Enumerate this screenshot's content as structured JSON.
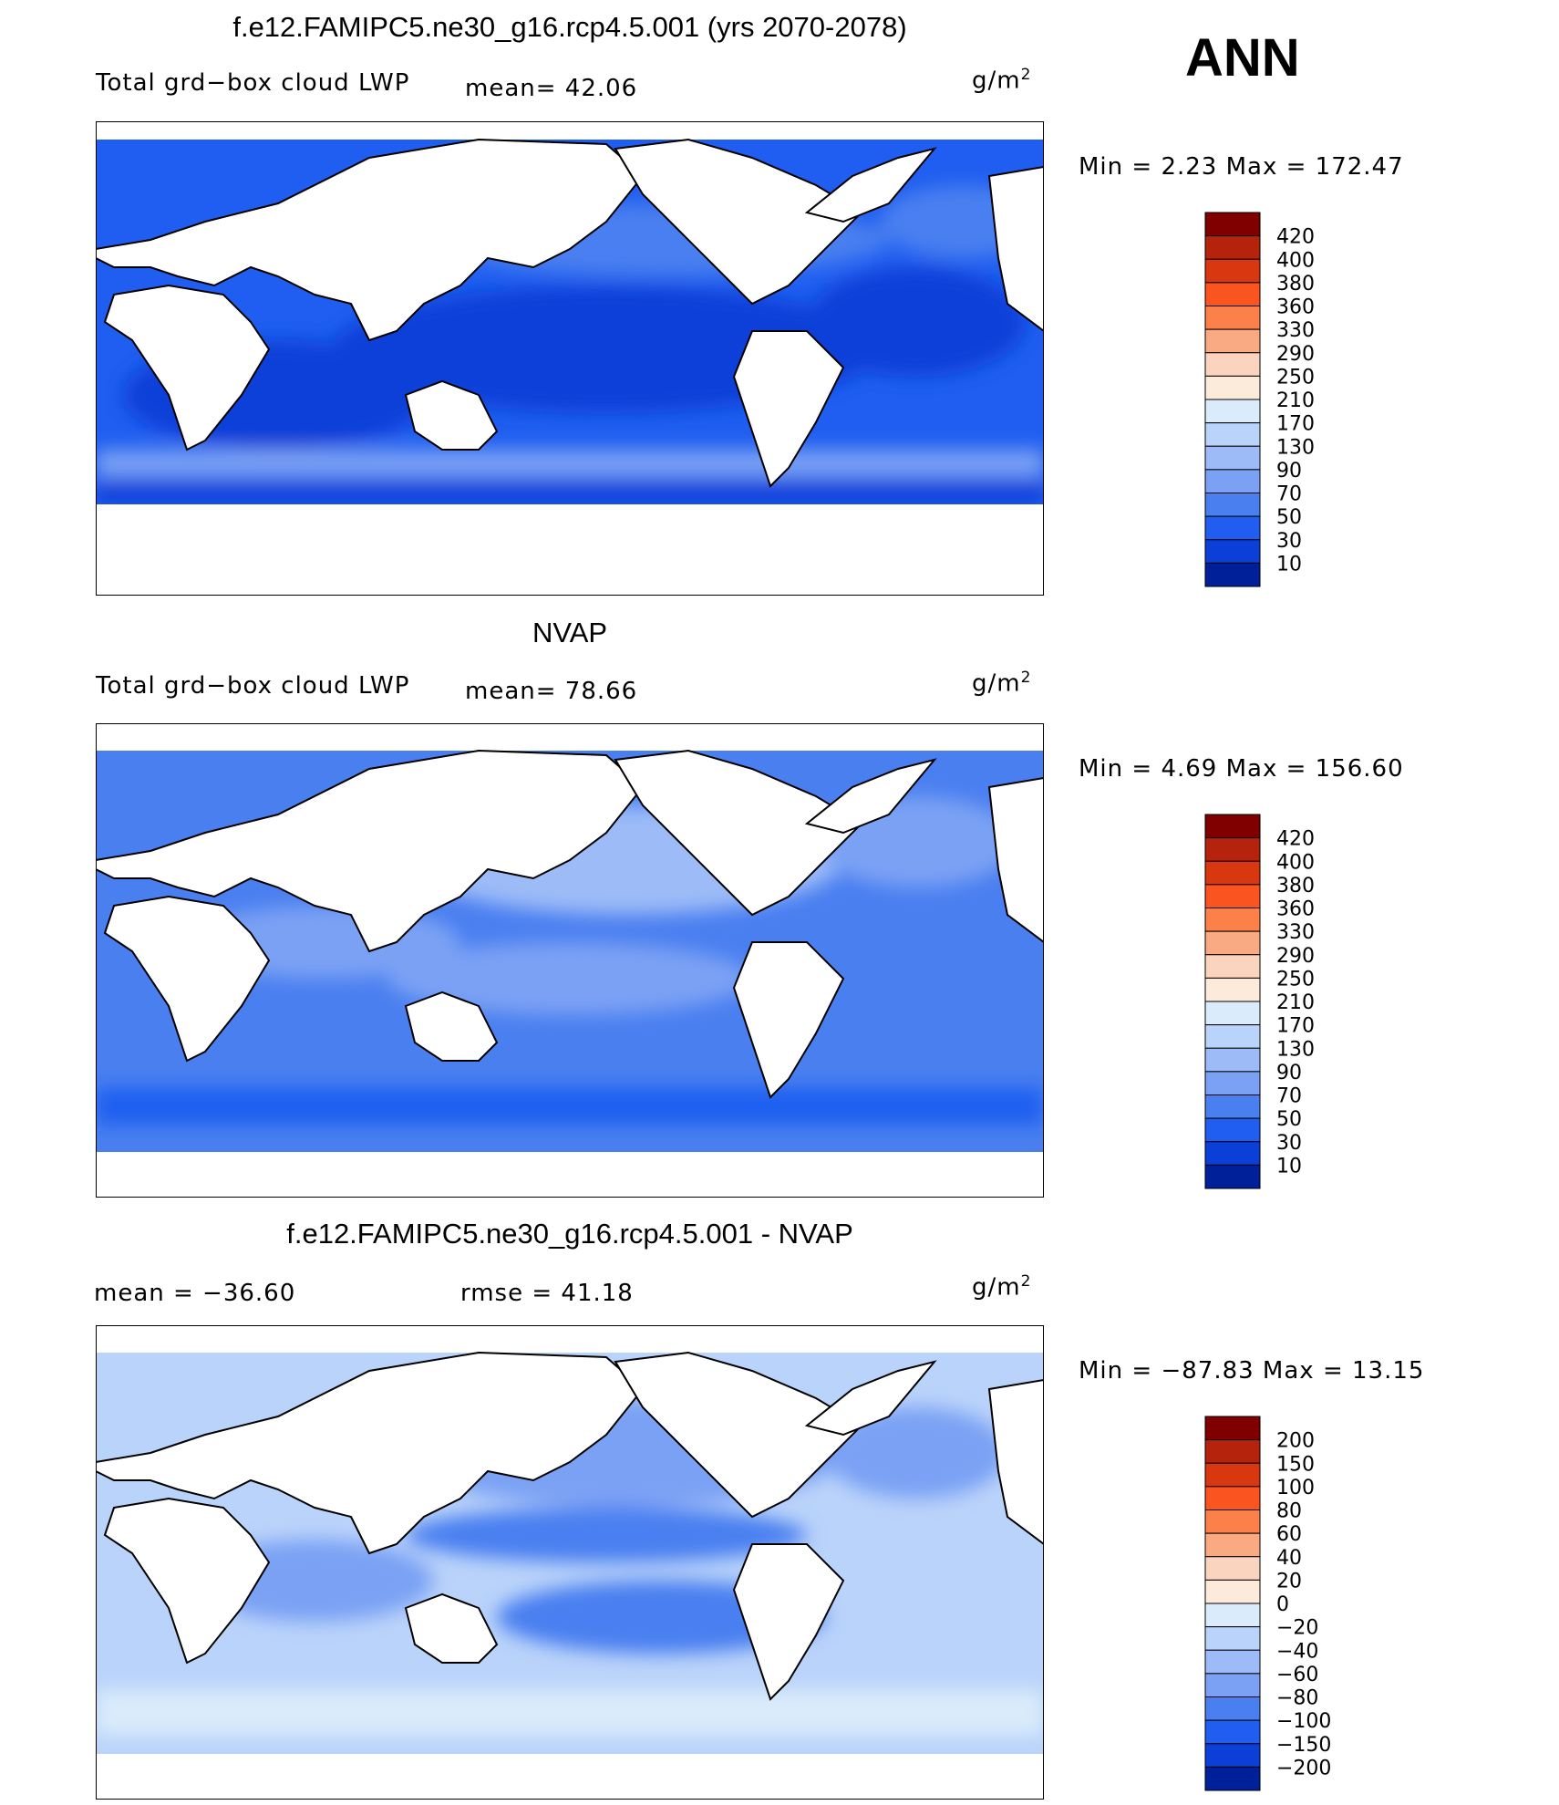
{
  "season": "ANN",
  "panels": [
    {
      "title": "f.e12.FAMIPC5.ne30_g16.rcp4.5.001 (yrs 2070-2078)",
      "left_label": "Total grd−box cloud LWP",
      "mid_label": "mean=   42.06",
      "units": "g/m",
      "units_sup": "2",
      "minmax": "Min =    2.23  Max  =  172.47"
    },
    {
      "title": "NVAP",
      "left_label": "Total grd−box cloud LWP",
      "mid_label": "mean=   78.66",
      "units": "g/m",
      "units_sup": "2",
      "minmax": "Min =    4.69  Max  =  156.60"
    },
    {
      "title": "f.e12.FAMIPC5.ne30_g16.rcp4.5.001 - NVAP",
      "left_label": "mean  =  −36.60",
      "mid_label": "rmse  =   41.18",
      "units": "g/m",
      "units_sup": "2",
      "minmax": "Min  = −87.83  Max  =   13.15"
    }
  ],
  "chart_data": [
    {
      "type": "heatmap",
      "title": "f.e12.FAMIPC5.ne30_g16.rcp4.5.001 (yrs 2070-2078)",
      "variable": "Total grd−box cloud LWP",
      "units": "g/m2",
      "mean": 42.06,
      "min": 2.23,
      "max": 172.47,
      "colorbar_levels": [
        "420",
        "400",
        "380",
        "360",
        "330",
        "290",
        "250",
        "210",
        "170",
        "130",
        "90",
        "70",
        "50",
        "30",
        "10"
      ],
      "colorbar_colors": [
        "#800000",
        "#b5230c",
        "#d9370f",
        "#fa5520",
        "#fc8049",
        "#f9aa83",
        "#fad4bf",
        "#fcebdb",
        "#daecfb",
        "#bad3fa",
        "#9cbbf7",
        "#7aa1f4",
        "#4a7ff0",
        "#1f5ef0",
        "#0b3fd8",
        "#00209a"
      ]
    },
    {
      "type": "heatmap",
      "title": "NVAP",
      "variable": "Total grd−box cloud LWP",
      "units": "g/m2",
      "mean": 78.66,
      "min": 4.69,
      "max": 156.6,
      "colorbar_levels": [
        "420",
        "400",
        "380",
        "360",
        "330",
        "290",
        "250",
        "210",
        "170",
        "130",
        "90",
        "70",
        "50",
        "30",
        "10"
      ],
      "colorbar_colors": [
        "#800000",
        "#b5230c",
        "#d9370f",
        "#fa5520",
        "#fc8049",
        "#f9aa83",
        "#fad4bf",
        "#fcebdb",
        "#daecfb",
        "#bad3fa",
        "#9cbbf7",
        "#7aa1f4",
        "#4a7ff0",
        "#1f5ef0",
        "#0b3fd8",
        "#00209a"
      ]
    },
    {
      "type": "heatmap",
      "title": "f.e12.FAMIPC5.ne30_g16.rcp4.5.001 - NVAP",
      "units": "g/m2",
      "mean": -36.6,
      "rmse": 41.18,
      "min": -87.83,
      "max": 13.15,
      "colorbar_levels": [
        "200",
        "150",
        "100",
        "80",
        "60",
        "40",
        "20",
        "0",
        "−20",
        "−40",
        "−60",
        "−80",
        "−100",
        "−150",
        "−200"
      ],
      "colorbar_colors": [
        "#800000",
        "#b5230c",
        "#d9370f",
        "#fa5520",
        "#fc8049",
        "#f9aa83",
        "#fad4bf",
        "#fcebdb",
        "#daecfb",
        "#bad3fa",
        "#9cbbf7",
        "#7aa1f4",
        "#4a7ff0",
        "#1f5ef0",
        "#0b3fd8",
        "#00209a"
      ]
    }
  ]
}
